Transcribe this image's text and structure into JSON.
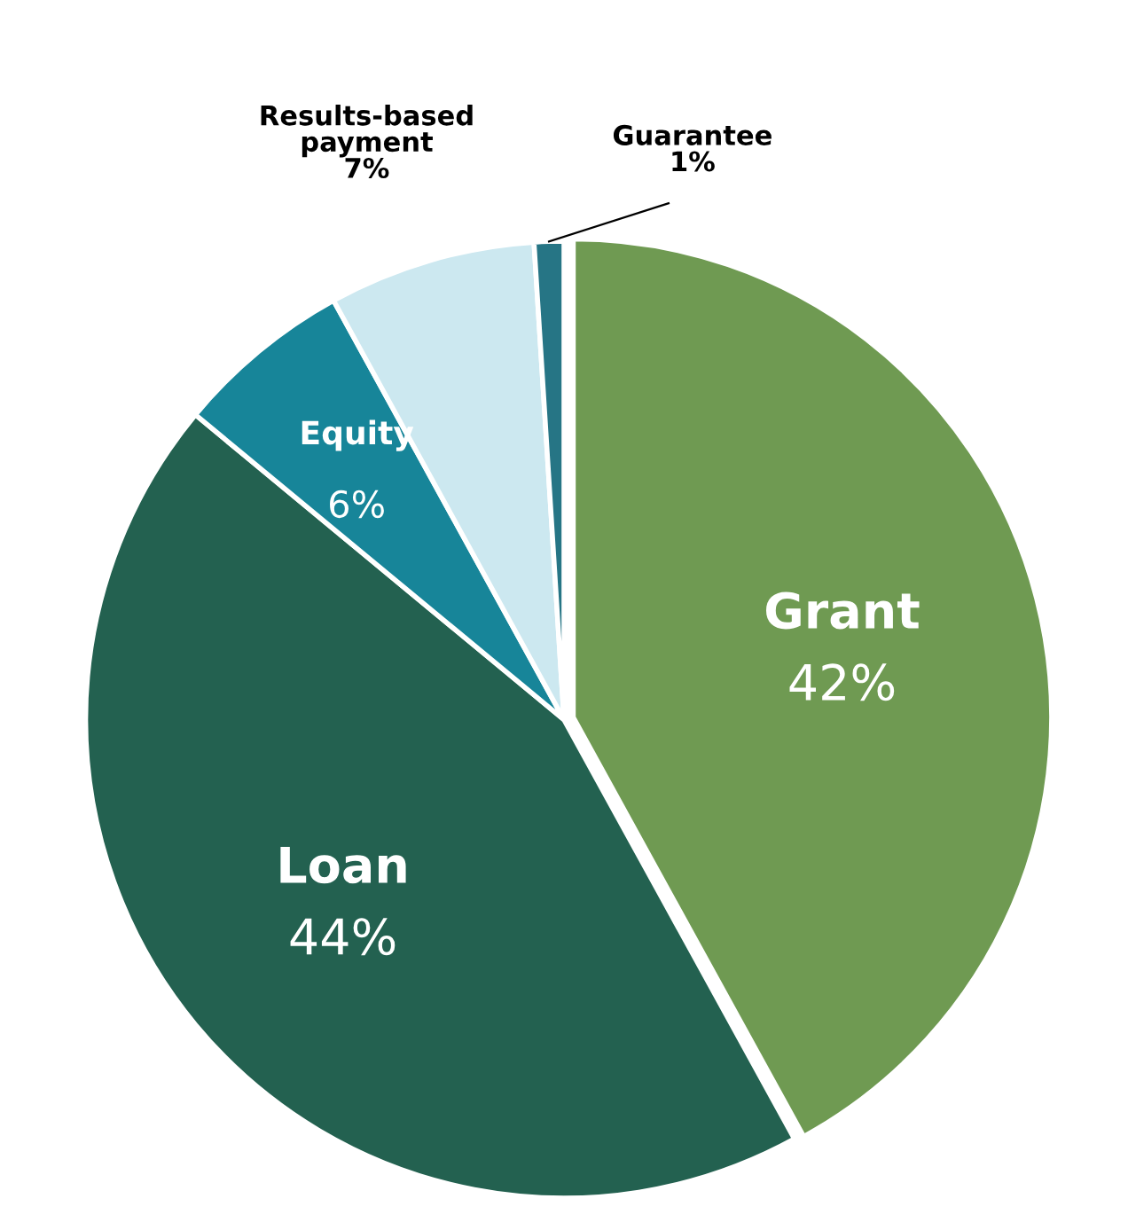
{
  "chart_data": {
    "type": "pie",
    "categories": [
      "Grant",
      "Loan",
      "Equity",
      "Results-based payment",
      "Guarantee"
    ],
    "values": [
      42,
      44,
      6,
      7,
      1
    ],
    "value_labels": [
      "42%",
      "44%",
      "6%",
      "7%",
      "1%"
    ],
    "colors": [
      "#6f9a52",
      "#236150",
      "#178599",
      "#cce8f0",
      "#267585"
    ],
    "legend": false
  }
}
